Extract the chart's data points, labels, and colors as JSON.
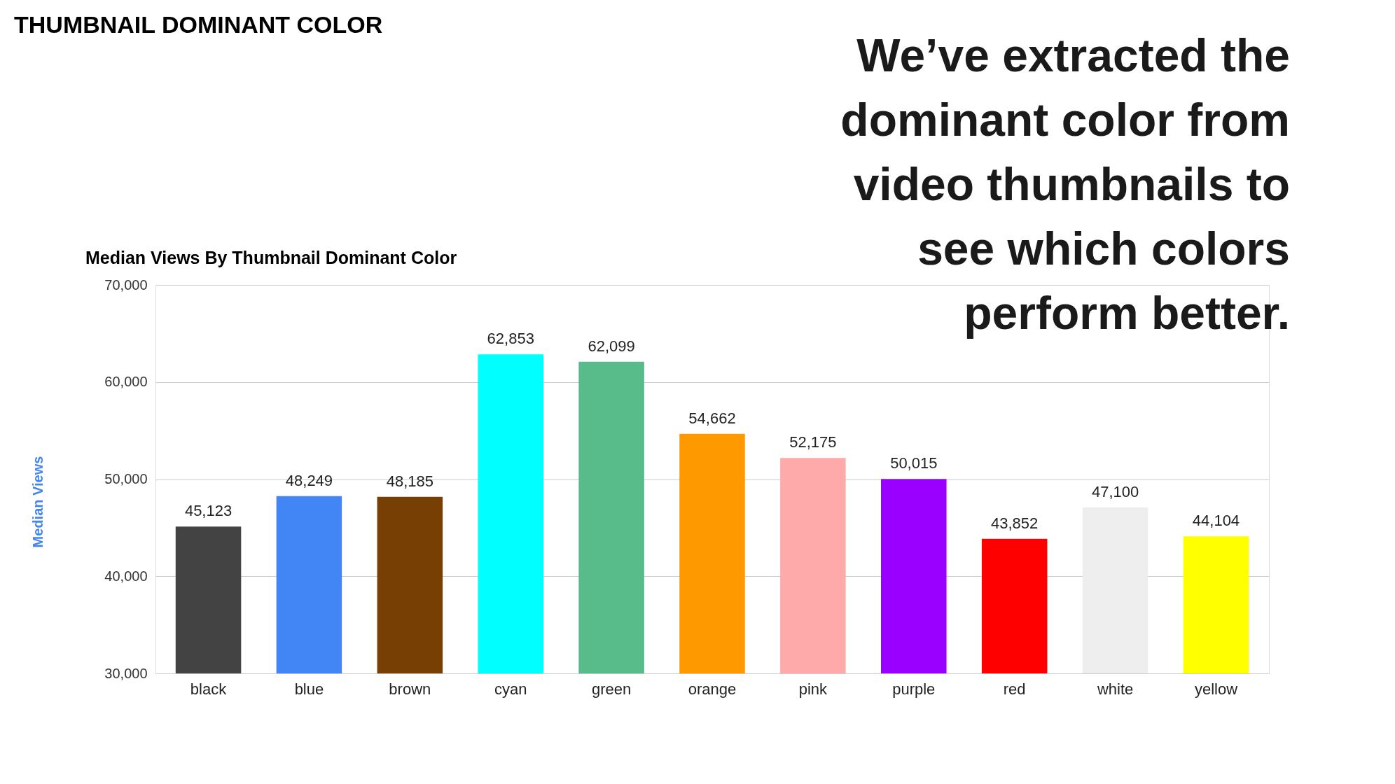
{
  "chart_data": {
    "type": "bar",
    "title": "THUMBNAIL DOMINANT COLOR",
    "subtitle": "Median Views By Thumbnail Dominant Color",
    "ylabel": "Median Views",
    "categories": [
      "black",
      "blue",
      "brown",
      "cyan",
      "green",
      "orange",
      "pink",
      "purple",
      "red",
      "white",
      "yellow"
    ],
    "values": [
      45123,
      48249,
      48185,
      62853,
      62099,
      54662,
      52175,
      50015,
      43852,
      47100,
      44104
    ],
    "value_labels": [
      "45,123",
      "48,249",
      "48,185",
      "62,853",
      "62,099",
      "54,662",
      "52,175",
      "50,015",
      "43,852",
      "47,100",
      "44,104"
    ],
    "colors": [
      "#434343",
      "#4285f4",
      "#783f04",
      "#00ffff",
      "#57bb8a",
      "#ff9900",
      "#ffaaaa",
      "#9900ff",
      "#ff0000",
      "#eeeeee",
      "#ffff00"
    ],
    "ylim": [
      30000,
      70000
    ],
    "yticks": [
      {
        "value": 30000,
        "label": "30,000"
      },
      {
        "value": 40000,
        "label": "40,000"
      },
      {
        "value": 50000,
        "label": "50,000"
      },
      {
        "value": 60000,
        "label": "60,000"
      },
      {
        "value": 70000,
        "label": "70,000"
      }
    ],
    "grid": "y",
    "annotations": [
      "We’ve extracted the dominant color from video thumbnails to see which colors perform better."
    ]
  }
}
